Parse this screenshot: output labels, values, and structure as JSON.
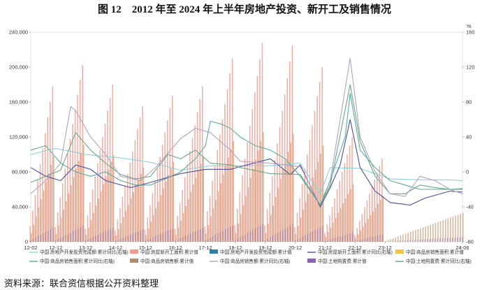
{
  "figure": {
    "title": "图 12　2012 年至 2024 年上半年房地产投资、新开工及销售情况",
    "source": "资料来源：联合资信根据公开资料整理"
  },
  "chart_data": {
    "type": "bar+line",
    "x_tick_labels": [
      "12-02",
      "12-12",
      "13-12",
      "14-12",
      "15-12",
      "16-12",
      "17-12",
      "18-12",
      "19-12",
      "20-12",
      "21-12",
      "22-12",
      "23-12",
      "24-06"
    ],
    "left_axis": {
      "unit": "",
      "ticks": [
        "0",
        "40,000",
        "80,000",
        "120,000",
        "160,000",
        "200,000",
        "240,000"
      ],
      "ylim": [
        0,
        240000
      ]
    },
    "right_axis": {
      "unit": "%",
      "ticks": [
        "-80",
        "-40",
        "0",
        "40",
        "80",
        "120",
        "160"
      ],
      "ylim": [
        -80,
        160
      ]
    },
    "grid": false,
    "legend_position": "bottom",
    "series": [
      {
        "name": "中国:房地产开发投资完成额:累计同比(右轴)",
        "kind": "line",
        "axis": "right",
        "color": "#8ed0d8",
        "anchors": [
          [
            0,
            20
          ],
          [
            10,
            27
          ],
          [
            22,
            20
          ],
          [
            36,
            16
          ],
          [
            48,
            11
          ],
          [
            60,
            2
          ],
          [
            72,
            7
          ],
          [
            84,
            7
          ],
          [
            96,
            7
          ],
          [
            108,
            10
          ],
          [
            116,
            -25
          ],
          [
            120,
            5
          ],
          [
            132,
            4
          ],
          [
            144,
            -8
          ],
          [
            156,
            -9
          ],
          [
            168,
            -9
          ],
          [
            173,
            -10
          ]
        ]
      },
      {
        "name": "中国:房屋新开工面积:累计值",
        "kind": "bar",
        "axis": "left",
        "color": "#f29b8f",
        "peaks": [
          178000,
          202000,
          180000,
          155000,
          167000,
          178000,
          210000,
          228000,
          225000,
          200000,
          120000,
          95000,
          0
        ]
      },
      {
        "name": "中国:房地产开发投资完成额:累计值",
        "kind": "bar",
        "axis": "left",
        "color": "#2e7fa5",
        "peaks": []
      },
      {
        "name": "中国:房屋新开工面积:累计同比(右轴)",
        "kind": "line",
        "axis": "right",
        "color": "#4a4f9c",
        "anchors": [
          [
            0,
            5
          ],
          [
            6,
            -5
          ],
          [
            12,
            -10
          ],
          [
            18,
            8
          ],
          [
            24,
            3
          ],
          [
            30,
            -10
          ],
          [
            40,
            -18
          ],
          [
            48,
            -12
          ],
          [
            60,
            -2
          ],
          [
            70,
            3
          ],
          [
            80,
            3
          ],
          [
            96,
            15
          ],
          [
            104,
            -3
          ],
          [
            108,
            8
          ],
          [
            116,
            -40
          ],
          [
            120,
            -18
          ],
          [
            124,
            8
          ],
          [
            128,
            60
          ],
          [
            132,
            5
          ],
          [
            138,
            -22
          ],
          [
            144,
            -35
          ],
          [
            152,
            -38
          ],
          [
            158,
            -30
          ],
          [
            168,
            -22
          ],
          [
            173,
            -23
          ]
        ]
      },
      {
        "name": "中国:商品房销售面积:累计值",
        "kind": "bar",
        "axis": "left",
        "color": "#f5c542",
        "peaks": []
      },
      {
        "name": "中国:商品房销售面积:累计同比(右轴)",
        "kind": "line",
        "axis": "right",
        "color": "#6aa77f",
        "anchors": [
          [
            0,
            -12
          ],
          [
            6,
            -5
          ],
          [
            12,
            2
          ],
          [
            18,
            45
          ],
          [
            24,
            25
          ],
          [
            30,
            10
          ],
          [
            36,
            -3
          ],
          [
            42,
            -8
          ],
          [
            48,
            -5
          ],
          [
            55,
            20
          ],
          [
            60,
            15
          ],
          [
            66,
            25
          ],
          [
            72,
            10
          ],
          [
            80,
            8
          ],
          [
            84,
            5
          ],
          [
            96,
            -2
          ],
          [
            108,
            -3
          ],
          [
            116,
            -38
          ],
          [
            120,
            -15
          ],
          [
            128,
            100
          ],
          [
            132,
            35
          ],
          [
            138,
            -5
          ],
          [
            144,
            -25
          ],
          [
            150,
            -25
          ],
          [
            156,
            -15
          ],
          [
            162,
            -18
          ],
          [
            168,
            -20
          ],
          [
            173,
            -19
          ]
        ]
      },
      {
        "name": "中国:商品房销售额:累计值",
        "kind": "bar",
        "axis": "left",
        "color": "#b08a6a",
        "peaks": []
      },
      {
        "name": "中国:商品房销售额:累计同比(右轴)",
        "kind": "line",
        "axis": "right",
        "color": "#b3a2c8",
        "anchors": [
          [
            0,
            -25
          ],
          [
            6,
            -10
          ],
          [
            12,
            10
          ],
          [
            16,
            75
          ],
          [
            18,
            70
          ],
          [
            24,
            40
          ],
          [
            30,
            20
          ],
          [
            36,
            -5
          ],
          [
            44,
            -10
          ],
          [
            50,
            5
          ],
          [
            60,
            38
          ],
          [
            66,
            50
          ],
          [
            72,
            45
          ],
          [
            80,
            25
          ],
          [
            84,
            12
          ],
          [
            96,
            10
          ],
          [
            108,
            6
          ],
          [
            116,
            -38
          ],
          [
            120,
            -10
          ],
          [
            128,
            130
          ],
          [
            132,
            40
          ],
          [
            138,
            0
          ],
          [
            144,
            -25
          ],
          [
            150,
            -28
          ],
          [
            156,
            -5
          ],
          [
            162,
            -10
          ],
          [
            168,
            -20
          ],
          [
            173,
            -25
          ]
        ]
      },
      {
        "name": "中国:土地购置费:累计值",
        "kind": "bar",
        "axis": "left",
        "color": "#8a62b0",
        "peaks": []
      },
      {
        "name": "中国:土地购置费:累计同比(右轴)",
        "kind": "line",
        "axis": "right",
        "color": "#5fa8a0",
        "anchors": [
          [
            0,
            25
          ],
          [
            6,
            30
          ],
          [
            12,
            10
          ],
          [
            18,
            0
          ],
          [
            24,
            -5
          ],
          [
            30,
            0
          ],
          [
            36,
            -10
          ],
          [
            42,
            -15
          ],
          [
            48,
            -15
          ],
          [
            54,
            -8
          ],
          [
            60,
            0
          ],
          [
            66,
            15
          ],
          [
            70,
            30
          ],
          [
            72,
            58
          ],
          [
            76,
            55
          ],
          [
            80,
            50
          ],
          [
            84,
            40
          ],
          [
            90,
            30
          ],
          [
            96,
            25
          ],
          [
            102,
            15
          ],
          [
            108,
            -5
          ],
          [
            116,
            -38
          ],
          [
            120,
            -10
          ],
          [
            126,
            40
          ],
          [
            128,
            90
          ],
          [
            132,
            25
          ],
          [
            138,
            5
          ],
          [
            144,
            -10
          ],
          [
            150,
            -15
          ],
          [
            156,
            -20
          ],
          [
            162,
            -20
          ],
          [
            168,
            -20
          ],
          [
            173,
            -20
          ]
        ]
      }
    ]
  }
}
